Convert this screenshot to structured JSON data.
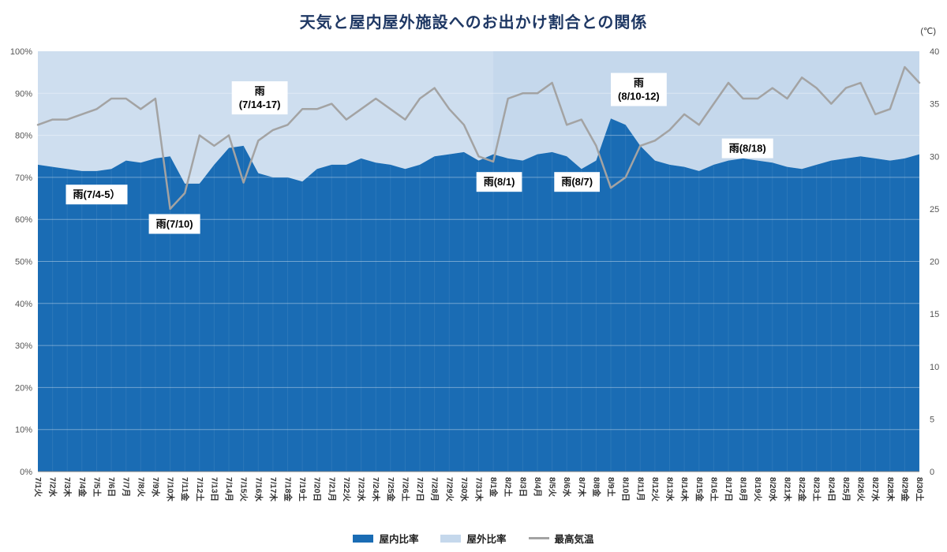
{
  "chart_data": {
    "type": "area",
    "variant": "percent-stacked-area-with-temperature-line",
    "title": "天気と屋内屋外施設へのお出かけ割合との関係",
    "categories": [
      "7/1火",
      "7/2水",
      "7/3木",
      "7/4金",
      "7/5土",
      "7/6日",
      "7/7月",
      "7/8火",
      "7/9水",
      "7/10木",
      "7/11金",
      "7/12土",
      "7/13日",
      "7/14月",
      "7/15火",
      "7/16水",
      "7/17木",
      "7/18金",
      "7/19土",
      "7/20日",
      "7/21月",
      "7/22火",
      "7/23水",
      "7/24木",
      "7/25金",
      "7/26土",
      "7/27日",
      "7/28月",
      "7/29火",
      "7/30水",
      "7/31木",
      "8/1金",
      "8/2土",
      "8/3日",
      "8/4月",
      "8/5火",
      "8/6水",
      "8/7木",
      "8/8金",
      "8/9土",
      "8/10日",
      "8/11月",
      "8/12火",
      "8/13水",
      "8/14木",
      "8/15金",
      "8/16土",
      "8/17日",
      "8/18月",
      "8/19火",
      "8/20水",
      "8/21木",
      "8/22金",
      "8/23土",
      "8/24日",
      "8/25月",
      "8/26火",
      "8/27水",
      "8/28木",
      "8/29金",
      "8/30土"
    ],
    "series": [
      {
        "name": "屋内比率",
        "kind": "area",
        "axis": "left",
        "color": "#1a6cb4",
        "values": [
          73,
          72.5,
          72,
          71.5,
          71.5,
          72,
          74,
          73.5,
          74.5,
          75,
          68.5,
          68.5,
          73,
          77,
          77.5,
          71,
          70,
          70,
          69,
          72,
          73,
          73,
          74.5,
          73.5,
          73,
          72,
          73,
          75,
          75.5,
          76,
          74,
          75.5,
          74.5,
          74,
          75.5,
          76,
          75,
          72,
          74,
          84,
          82.5,
          77.5,
          74,
          73,
          72.5,
          71.5,
          73,
          74,
          74.5,
          74,
          73.5,
          72.5,
          72,
          73,
          74,
          74.5,
          75,
          74.5,
          74,
          74.5,
          75.5
        ]
      },
      {
        "name": "屋外比率",
        "kind": "area",
        "axis": "left",
        "color": "#c5d8ec",
        "values": [
          27,
          27.5,
          28,
          28.5,
          28.5,
          28,
          26,
          26.5,
          25.5,
          25,
          31.5,
          31.5,
          27,
          23,
          22.5,
          29,
          30,
          30,
          31,
          28,
          27,
          27,
          25.5,
          26.5,
          27,
          28,
          27,
          25,
          24.5,
          24,
          26,
          24.5,
          25.5,
          26,
          24.5,
          24,
          25,
          28,
          26,
          16,
          17.5,
          22.5,
          26,
          27,
          27.5,
          28.5,
          27,
          26,
          25.5,
          26,
          26.5,
          27.5,
          28,
          27,
          26,
          25.5,
          25,
          25.5,
          26,
          25.5,
          24.5
        ]
      },
      {
        "name": "最高気温",
        "kind": "line",
        "axis": "right",
        "color": "#a3a3a3",
        "values": [
          33,
          33.5,
          33.5,
          34,
          34.5,
          35.5,
          35.5,
          34.5,
          35.5,
          25,
          26.5,
          32,
          31,
          32,
          27.5,
          31.5,
          32.5,
          33,
          34.5,
          34.5,
          35,
          33.5,
          34.5,
          35.5,
          34.5,
          33.5,
          35.5,
          36.5,
          34.5,
          33,
          30,
          29.5,
          35.5,
          36,
          36,
          37,
          33,
          33.5,
          31,
          27,
          28,
          31,
          31.5,
          32.5,
          34,
          33,
          35,
          37,
          35.5,
          35.5,
          36.5,
          35.5,
          37.5,
          36.5,
          35,
          36.5,
          37,
          34,
          34.5,
          38.5,
          37
        ]
      }
    ],
    "y_left": {
      "min": 0,
      "max": 100,
      "step": 10,
      "suffix": "%"
    },
    "y_right": {
      "min": 0,
      "max": 40,
      "step": 5,
      "unit_label": "(℃)"
    },
    "grid": true,
    "legend_position": "bottom",
    "month_shade_boundary_index": 31,
    "annotations": [
      {
        "lines": [
          "雨(7/4-5）"
        ],
        "x_index": 4,
        "y_pct": 66
      },
      {
        "lines": [
          "雨(7/10)"
        ],
        "x_index": 9.3,
        "y_pct": 59
      },
      {
        "lines": [
          "雨",
          "(7/14-17)"
        ],
        "x_index": 15.1,
        "y_pct": 89
      },
      {
        "lines": [
          "雨(8/1)"
        ],
        "x_index": 31.4,
        "y_pct": 69
      },
      {
        "lines": [
          "雨(8/7)"
        ],
        "x_index": 36.7,
        "y_pct": 69
      },
      {
        "lines": [
          "雨",
          "(8/10-12)"
        ],
        "x_index": 40.9,
        "y_pct": 91
      },
      {
        "lines": [
          "雨(8/18)"
        ],
        "x_index": 48.3,
        "y_pct": 77
      }
    ]
  }
}
